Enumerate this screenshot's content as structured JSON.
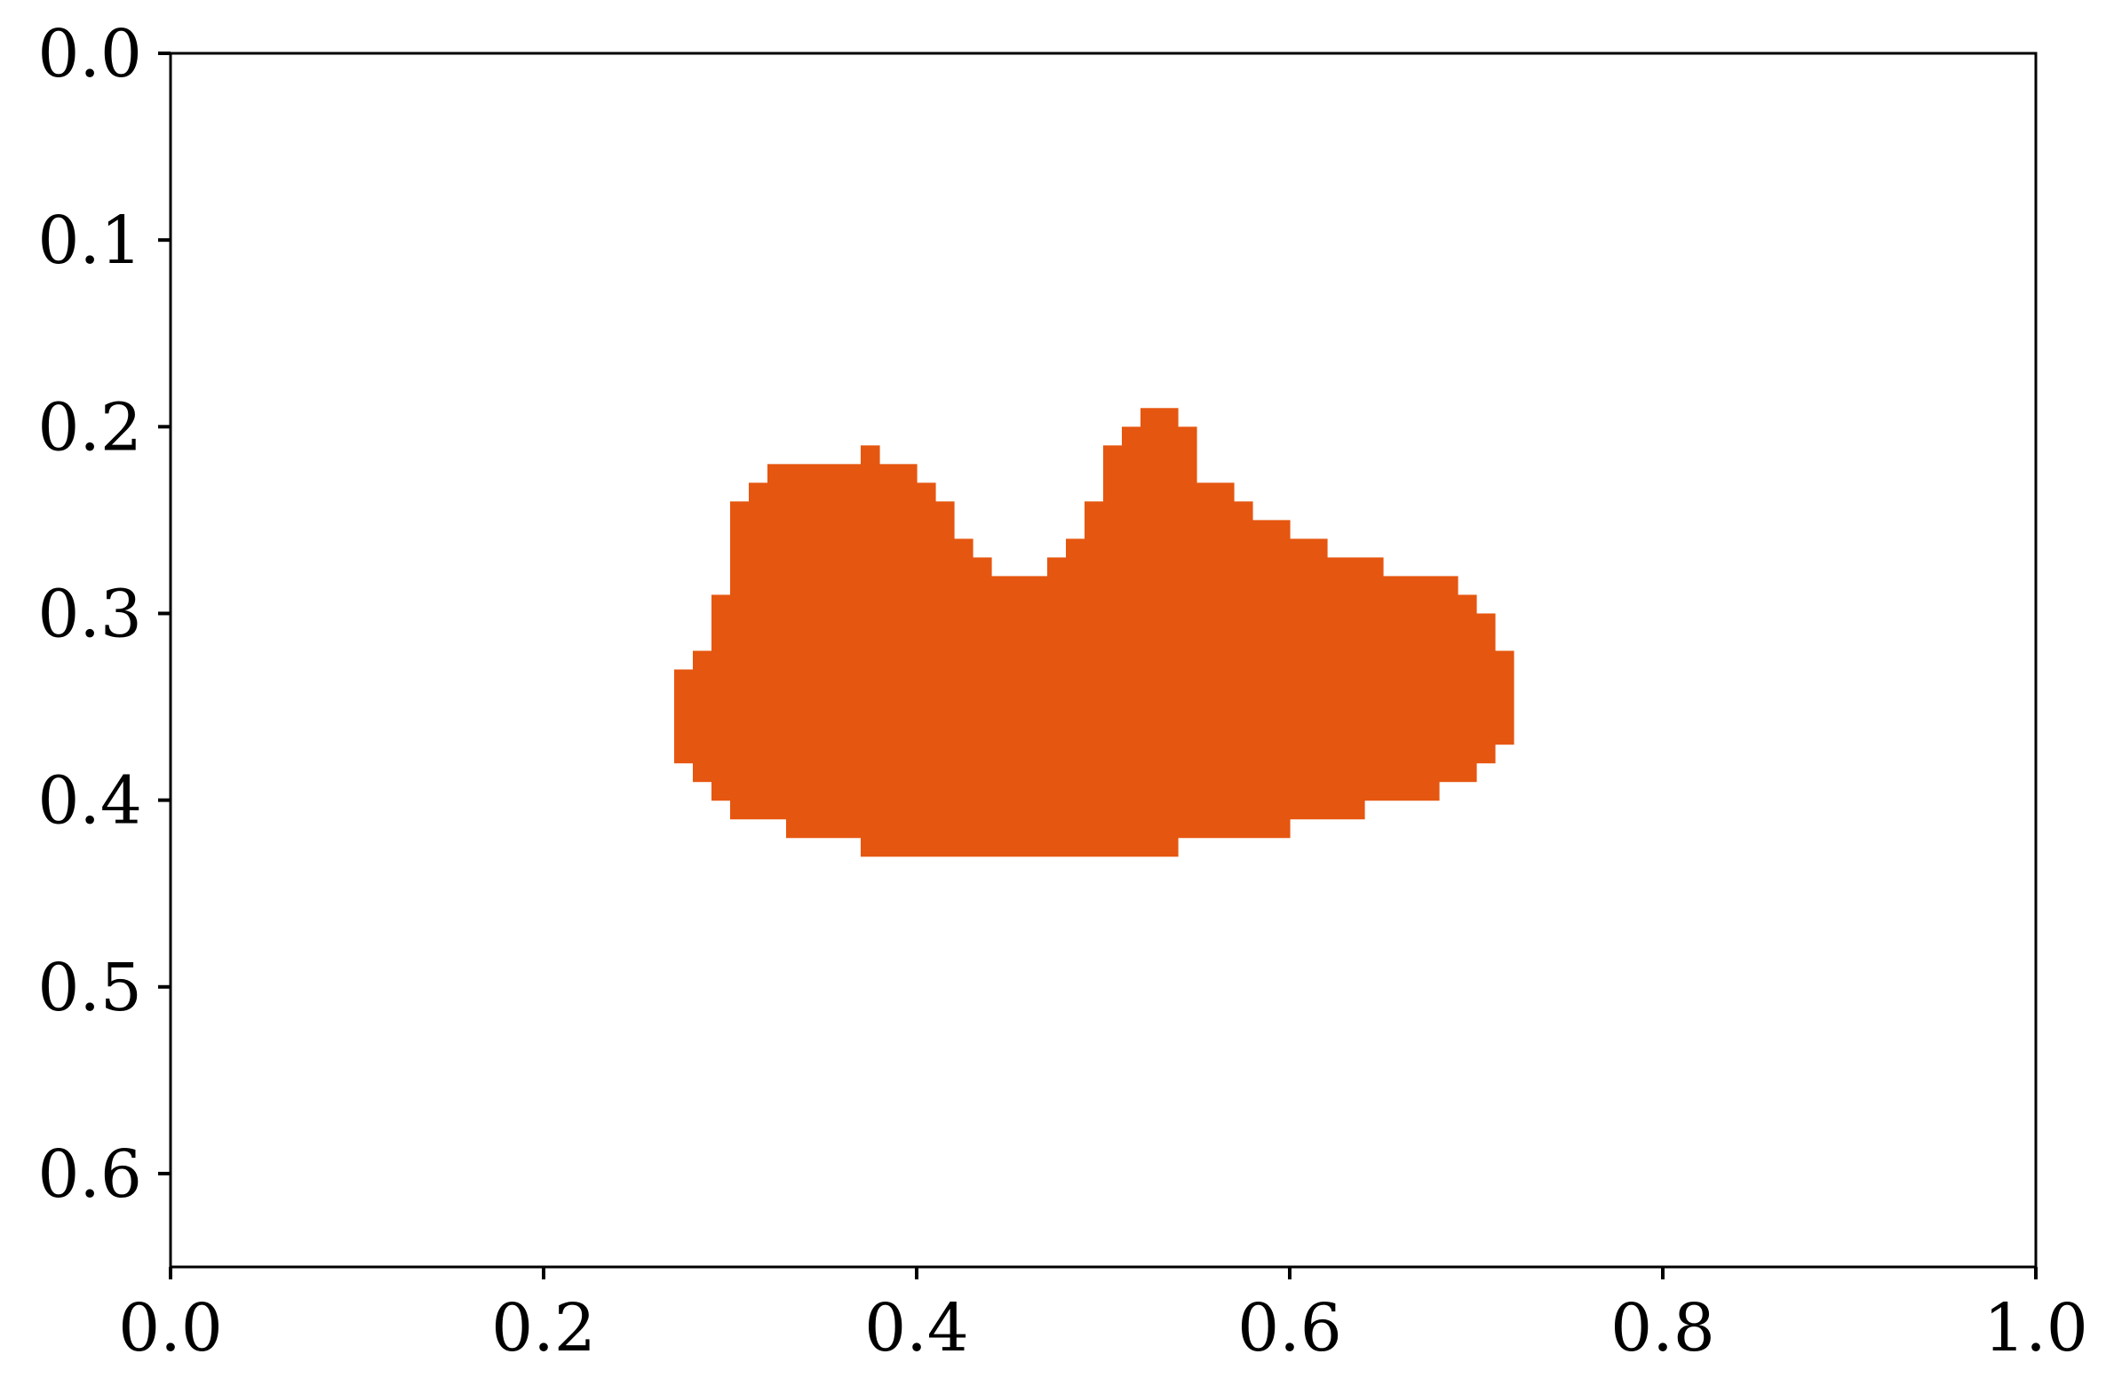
{
  "chart_data": {
    "type": "heatmap",
    "title": "",
    "xlabel": "",
    "ylabel": "",
    "xlim": [
      0.0,
      1.0
    ],
    "ylim": [
      0.65,
      0.0
    ],
    "y_inverted": true,
    "grid": false,
    "legend": "none",
    "xticks": [
      "0.0",
      "0.2",
      "0.4",
      "0.6",
      "0.8",
      "1.0"
    ],
    "yticks": [
      "0.0",
      "0.1",
      "0.2",
      "0.3",
      "0.4",
      "0.5",
      "0.6"
    ],
    "cell_size": 0.01,
    "fill_color": "#e55610",
    "description": "binary mask region; each row gives y-extent and x-extent of filled cells",
    "mask_rows": [
      {
        "y": [
          0.19,
          0.2
        ],
        "x": [
          0.52,
          0.54
        ]
      },
      {
        "y": [
          0.2,
          0.21
        ],
        "x": [
          0.51,
          0.55
        ]
      },
      {
        "y": [
          0.21,
          0.22
        ],
        "x": [
          0.37,
          0.38
        ]
      },
      {
        "y": [
          0.21,
          0.22
        ],
        "x": [
          0.5,
          0.55
        ]
      },
      {
        "y": [
          0.22,
          0.23
        ],
        "x": [
          0.32,
          0.4
        ]
      },
      {
        "y": [
          0.22,
          0.23
        ],
        "x": [
          0.5,
          0.55
        ]
      },
      {
        "y": [
          0.23,
          0.24
        ],
        "x": [
          0.31,
          0.41
        ]
      },
      {
        "y": [
          0.23,
          0.24
        ],
        "x": [
          0.5,
          0.57
        ]
      },
      {
        "y": [
          0.24,
          0.25
        ],
        "x": [
          0.3,
          0.42
        ]
      },
      {
        "y": [
          0.24,
          0.25
        ],
        "x": [
          0.49,
          0.58
        ]
      },
      {
        "y": [
          0.25,
          0.26
        ],
        "x": [
          0.3,
          0.42
        ]
      },
      {
        "y": [
          0.25,
          0.26
        ],
        "x": [
          0.49,
          0.6
        ]
      },
      {
        "y": [
          0.26,
          0.27
        ],
        "x": [
          0.3,
          0.43
        ]
      },
      {
        "y": [
          0.26,
          0.27
        ],
        "x": [
          0.48,
          0.62
        ]
      },
      {
        "y": [
          0.27,
          0.28
        ],
        "x": [
          0.3,
          0.44
        ]
      },
      {
        "y": [
          0.27,
          0.28
        ],
        "x": [
          0.47,
          0.65
        ]
      },
      {
        "y": [
          0.28,
          0.29
        ],
        "x": [
          0.3,
          0.69
        ]
      },
      {
        "y": [
          0.29,
          0.3
        ],
        "x": [
          0.29,
          0.7
        ]
      },
      {
        "y": [
          0.3,
          0.31
        ],
        "x": [
          0.29,
          0.71
        ]
      },
      {
        "y": [
          0.31,
          0.32
        ],
        "x": [
          0.29,
          0.71
        ]
      },
      {
        "y": [
          0.32,
          0.33
        ],
        "x": [
          0.28,
          0.72
        ]
      },
      {
        "y": [
          0.33,
          0.37
        ],
        "x": [
          0.27,
          0.72
        ]
      },
      {
        "y": [
          0.37,
          0.38
        ],
        "x": [
          0.27,
          0.71
        ]
      },
      {
        "y": [
          0.38,
          0.39
        ],
        "x": [
          0.28,
          0.7
        ]
      },
      {
        "y": [
          0.39,
          0.4
        ],
        "x": [
          0.29,
          0.68
        ]
      },
      {
        "y": [
          0.4,
          0.41
        ],
        "x": [
          0.3,
          0.64
        ]
      },
      {
        "y": [
          0.41,
          0.42
        ],
        "x": [
          0.33,
          0.6
        ]
      },
      {
        "y": [
          0.42,
          0.43
        ],
        "x": [
          0.37,
          0.54
        ]
      }
    ]
  }
}
